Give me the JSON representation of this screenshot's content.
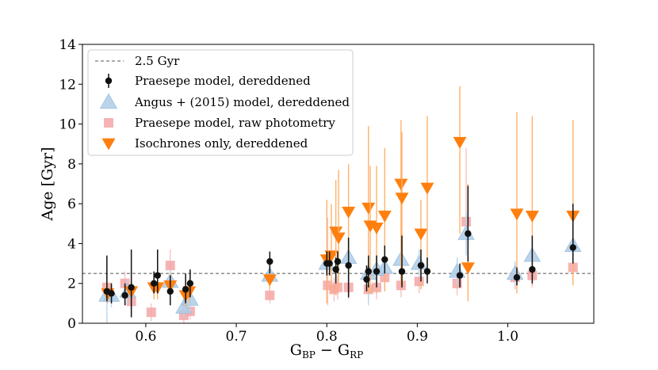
{
  "chart_data": {
    "type": "scatter",
    "title": "",
    "xlabel": "G_BP − G_RP",
    "xlabel_parts": {
      "g1": "G",
      "sub1": "BP",
      "minus": " − ",
      "g2": "G",
      "sub2": "RP"
    },
    "ylabel": "Age [Gyr]",
    "xlim": [
      0.53,
      1.095
    ],
    "ylim": [
      0,
      14
    ],
    "xticks": [
      0.6,
      0.7,
      0.8,
      0.9,
      1.0
    ],
    "xtick_labels": [
      "0.6",
      "0.7",
      "0.8",
      "0.9",
      "1.0"
    ],
    "yticks": [
      0,
      2,
      4,
      6,
      8,
      10,
      12,
      14
    ],
    "ytick_labels": [
      "0",
      "2",
      "4",
      "6",
      "8",
      "10",
      "12",
      "14"
    ],
    "reference_line": {
      "y": 2.5,
      "label": "2.5 Gyr",
      "color": "#555555",
      "style": "dashed"
    },
    "legend_position": "upper-left",
    "series": [
      {
        "name": "Praesepe model, raw photometry",
        "marker": "square",
        "color": "#f4a6a6",
        "points": [
          {
            "x": 0.557,
            "y": 1.8,
            "lo": 1.2,
            "hi": 2.3
          },
          {
            "x": 0.577,
            "y": 2.0,
            "lo": 1.4,
            "hi": 2.6
          },
          {
            "x": 0.584,
            "y": 1.1,
            "lo": 0.6,
            "hi": 1.6
          },
          {
            "x": 0.606,
            "y": 0.55,
            "lo": 0.1,
            "hi": 1.0
          },
          {
            "x": 0.627,
            "y": 2.9,
            "lo": 2.2,
            "hi": 3.7
          },
          {
            "x": 0.642,
            "y": 0.4,
            "lo": 0.0,
            "hi": 0.8
          },
          {
            "x": 0.649,
            "y": 0.6,
            "lo": 0.2,
            "hi": 1.0
          },
          {
            "x": 0.737,
            "y": 1.4,
            "lo": 1.0,
            "hi": 1.9
          },
          {
            "x": 0.801,
            "y": 1.9,
            "lo": 0.9,
            "hi": 5.3
          },
          {
            "x": 0.808,
            "y": 1.7,
            "lo": 1.1,
            "hi": 2.3
          },
          {
            "x": 0.812,
            "y": 1.8,
            "lo": 1.2,
            "hi": 2.4
          },
          {
            "x": 0.824,
            "y": 1.8,
            "lo": 1.2,
            "hi": 2.4
          },
          {
            "x": 0.846,
            "y": 1.7,
            "lo": 1.1,
            "hi": 2.3
          },
          {
            "x": 0.855,
            "y": 1.8,
            "lo": 1.2,
            "hi": 2.4
          },
          {
            "x": 0.864,
            "y": 2.3,
            "lo": 1.6,
            "hi": 3.0
          },
          {
            "x": 0.882,
            "y": 1.9,
            "lo": 1.3,
            "hi": 2.5
          },
          {
            "x": 0.902,
            "y": 2.1,
            "lo": 1.5,
            "hi": 2.7
          },
          {
            "x": 0.944,
            "y": 2.0,
            "lo": 1.4,
            "hi": 2.6
          },
          {
            "x": 0.954,
            "y": 5.1,
            "lo": 3.8,
            "hi": 8.8
          },
          {
            "x": 1.008,
            "y": 2.3,
            "lo": 1.7,
            "hi": 2.9
          },
          {
            "x": 1.027,
            "y": 2.4,
            "lo": 1.8,
            "hi": 3.0
          },
          {
            "x": 1.072,
            "y": 2.8,
            "lo": 2.1,
            "hi": 3.5
          }
        ]
      },
      {
        "name": "Angus + (2015) model, dereddened",
        "marker": "triangle-up",
        "color": "#aecde8",
        "points": [
          {
            "x": 0.557,
            "y": 1.4,
            "lo": 0.0,
            "hi": 2.8
          },
          {
            "x": 0.562,
            "y": 1.4,
            "lo": 0.8,
            "hi": 2.0
          },
          {
            "x": 0.58,
            "y": 1.6,
            "lo": 1.0,
            "hi": 2.2
          },
          {
            "x": 0.627,
            "y": 2.1,
            "lo": 1.5,
            "hi": 2.7
          },
          {
            "x": 0.642,
            "y": 0.8,
            "lo": 0.3,
            "hi": 1.3
          },
          {
            "x": 0.649,
            "y": 1.2,
            "lo": 0.6,
            "hi": 1.8
          },
          {
            "x": 0.737,
            "y": 2.4,
            "lo": 1.8,
            "hi": 3.0
          },
          {
            "x": 0.8,
            "y": 3.0,
            "lo": 2.3,
            "hi": 3.7
          },
          {
            "x": 0.824,
            "y": 3.3,
            "lo": 2.6,
            "hi": 4.0
          },
          {
            "x": 0.846,
            "y": 2.5,
            "lo": 0.9,
            "hi": 4.0
          },
          {
            "x": 0.855,
            "y": 2.7,
            "lo": 2.0,
            "hi": 3.4
          },
          {
            "x": 0.864,
            "y": 2.8,
            "lo": 2.1,
            "hi": 3.5
          },
          {
            "x": 0.882,
            "y": 3.2,
            "lo": 2.4,
            "hi": 4.0
          },
          {
            "x": 0.902,
            "y": 3.0,
            "lo": 2.3,
            "hi": 3.7
          },
          {
            "x": 0.944,
            "y": 2.6,
            "lo": 1.9,
            "hi": 3.3
          },
          {
            "x": 0.954,
            "y": 4.5,
            "lo": 3.4,
            "hi": 5.6
          },
          {
            "x": 1.008,
            "y": 2.5,
            "lo": 1.9,
            "hi": 3.1
          },
          {
            "x": 1.027,
            "y": 3.4,
            "lo": 2.6,
            "hi": 4.2
          },
          {
            "x": 1.072,
            "y": 3.9,
            "lo": 3.0,
            "hi": 4.8
          }
        ]
      },
      {
        "name": "Isochrones only, dereddened",
        "marker": "triangle-down",
        "color": "#ff7f0e",
        "points": [
          {
            "x": 0.558,
            "y": 1.5,
            "lo": 1.0,
            "hi": 2.0
          },
          {
            "x": 0.584,
            "y": 1.6,
            "lo": 1.1,
            "hi": 2.1
          },
          {
            "x": 0.609,
            "y": 1.8,
            "lo": 1.2,
            "hi": 2.4
          },
          {
            "x": 0.613,
            "y": 1.8,
            "lo": 1.2,
            "hi": 2.4
          },
          {
            "x": 0.627,
            "y": 1.9,
            "lo": 1.3,
            "hi": 2.5
          },
          {
            "x": 0.644,
            "y": 1.4,
            "lo": 0.8,
            "hi": 2.0
          },
          {
            "x": 0.648,
            "y": 1.6,
            "lo": 1.0,
            "hi": 2.2
          },
          {
            "x": 0.737,
            "y": 2.2,
            "lo": 1.7,
            "hi": 2.7
          },
          {
            "x": 0.8,
            "y": 3.2,
            "lo": 1.0,
            "hi": 6.2
          },
          {
            "x": 0.805,
            "y": 3.4,
            "lo": 1.5,
            "hi": 6.0
          },
          {
            "x": 0.81,
            "y": 4.6,
            "lo": 1.4,
            "hi": 7.2
          },
          {
            "x": 0.813,
            "y": 4.3,
            "lo": 1.7,
            "hi": 7.7
          },
          {
            "x": 0.824,
            "y": 5.6,
            "lo": 1.4,
            "hi": 8.0
          },
          {
            "x": 0.846,
            "y": 5.8,
            "lo": 1.5,
            "hi": 9.9
          },
          {
            "x": 0.848,
            "y": 4.9,
            "lo": 1.5,
            "hi": 7.9
          },
          {
            "x": 0.855,
            "y": 4.8,
            "lo": 1.5,
            "hi": 7.9
          },
          {
            "x": 0.864,
            "y": 5.4,
            "lo": 1.6,
            "hi": 8.8
          },
          {
            "x": 0.882,
            "y": 7.0,
            "lo": 1.9,
            "hi": 10.2
          },
          {
            "x": 0.883,
            "y": 6.3,
            "lo": 1.9,
            "hi": 9.6
          },
          {
            "x": 0.904,
            "y": 4.5,
            "lo": 1.7,
            "hi": 6.2
          },
          {
            "x": 0.911,
            "y": 6.8,
            "lo": 2.5,
            "hi": 10.4
          },
          {
            "x": 0.947,
            "y": 9.1,
            "lo": 4.5,
            "hi": 11.9
          },
          {
            "x": 0.956,
            "y": 2.8,
            "lo": 1.1,
            "hi": 7.0
          },
          {
            "x": 1.01,
            "y": 5.5,
            "lo": 1.5,
            "hi": 10.6
          },
          {
            "x": 1.027,
            "y": 5.4,
            "lo": 1.9,
            "hi": 10.4
          },
          {
            "x": 1.072,
            "y": 5.4,
            "lo": 1.9,
            "hi": 10.2
          }
        ]
      },
      {
        "name": "Praesepe model, dereddened",
        "marker": "circle",
        "color": "#111111",
        "points": [
          {
            "x": 0.557,
            "y": 1.6,
            "lo": 1.1,
            "hi": 3.4
          },
          {
            "x": 0.562,
            "y": 1.5,
            "lo": 1.0,
            "hi": 2.0
          },
          {
            "x": 0.577,
            "y": 1.4,
            "lo": 0.9,
            "hi": 2.0
          },
          {
            "x": 0.584,
            "y": 1.8,
            "lo": 0.3,
            "hi": 3.7
          },
          {
            "x": 0.609,
            "y": 2.0,
            "lo": 1.5,
            "hi": 2.6
          },
          {
            "x": 0.613,
            "y": 2.4,
            "lo": 1.5,
            "hi": 3.7
          },
          {
            "x": 0.627,
            "y": 1.6,
            "lo": 0.9,
            "hi": 2.4
          },
          {
            "x": 0.644,
            "y": 1.7,
            "lo": 1.0,
            "hi": 2.5
          },
          {
            "x": 0.649,
            "y": 2.0,
            "lo": 1.3,
            "hi": 2.7
          },
          {
            "x": 0.737,
            "y": 3.1,
            "lo": 2.5,
            "hi": 3.6
          },
          {
            "x": 0.8,
            "y": 3.0,
            "lo": 2.4,
            "hi": 3.6
          },
          {
            "x": 0.803,
            "y": 3.0,
            "lo": 2.4,
            "hi": 3.6
          },
          {
            "x": 0.81,
            "y": 2.7,
            "lo": 2.0,
            "hi": 3.3
          },
          {
            "x": 0.812,
            "y": 3.1,
            "lo": 2.5,
            "hi": 3.6
          },
          {
            "x": 0.824,
            "y": 2.9,
            "lo": 1.3,
            "hi": 4.3
          },
          {
            "x": 0.844,
            "y": 2.2,
            "lo": 1.6,
            "hi": 2.9
          },
          {
            "x": 0.846,
            "y": 2.6,
            "lo": 1.8,
            "hi": 3.4
          },
          {
            "x": 0.855,
            "y": 2.6,
            "lo": 1.8,
            "hi": 3.4
          },
          {
            "x": 0.864,
            "y": 3.2,
            "lo": 2.5,
            "hi": 3.9
          },
          {
            "x": 0.883,
            "y": 2.6,
            "lo": 1.8,
            "hi": 4.4
          },
          {
            "x": 0.904,
            "y": 2.9,
            "lo": 2.1,
            "hi": 3.7
          },
          {
            "x": 0.911,
            "y": 2.6,
            "lo": 2.0,
            "hi": 3.3
          },
          {
            "x": 0.947,
            "y": 2.4,
            "lo": 1.8,
            "hi": 3.0
          },
          {
            "x": 0.956,
            "y": 4.5,
            "lo": 3.1,
            "hi": 6.9
          },
          {
            "x": 1.01,
            "y": 2.3,
            "lo": 1.9,
            "hi": 2.8
          },
          {
            "x": 1.027,
            "y": 2.7,
            "lo": 2.0,
            "hi": 4.4
          },
          {
            "x": 1.072,
            "y": 3.8,
            "lo": 3.0,
            "hi": 6.0
          }
        ]
      }
    ],
    "legend": [
      {
        "label": "2.5 Gyr",
        "marker": "dashed-line",
        "color": "#555555"
      },
      {
        "label": "Praesepe model,  dereddened",
        "marker": "circle",
        "color": "#111111"
      },
      {
        "label": "Angus  +  (2015) model,  dereddened",
        "marker": "triangle-up",
        "color": "#aecde8"
      },
      {
        "label": "Praesepe model,  raw photometry",
        "marker": "square",
        "color": "#f4a6a6"
      },
      {
        "label": "Isochrones only,  dereddened",
        "marker": "triangle-down",
        "color": "#ff7f0e"
      }
    ]
  }
}
